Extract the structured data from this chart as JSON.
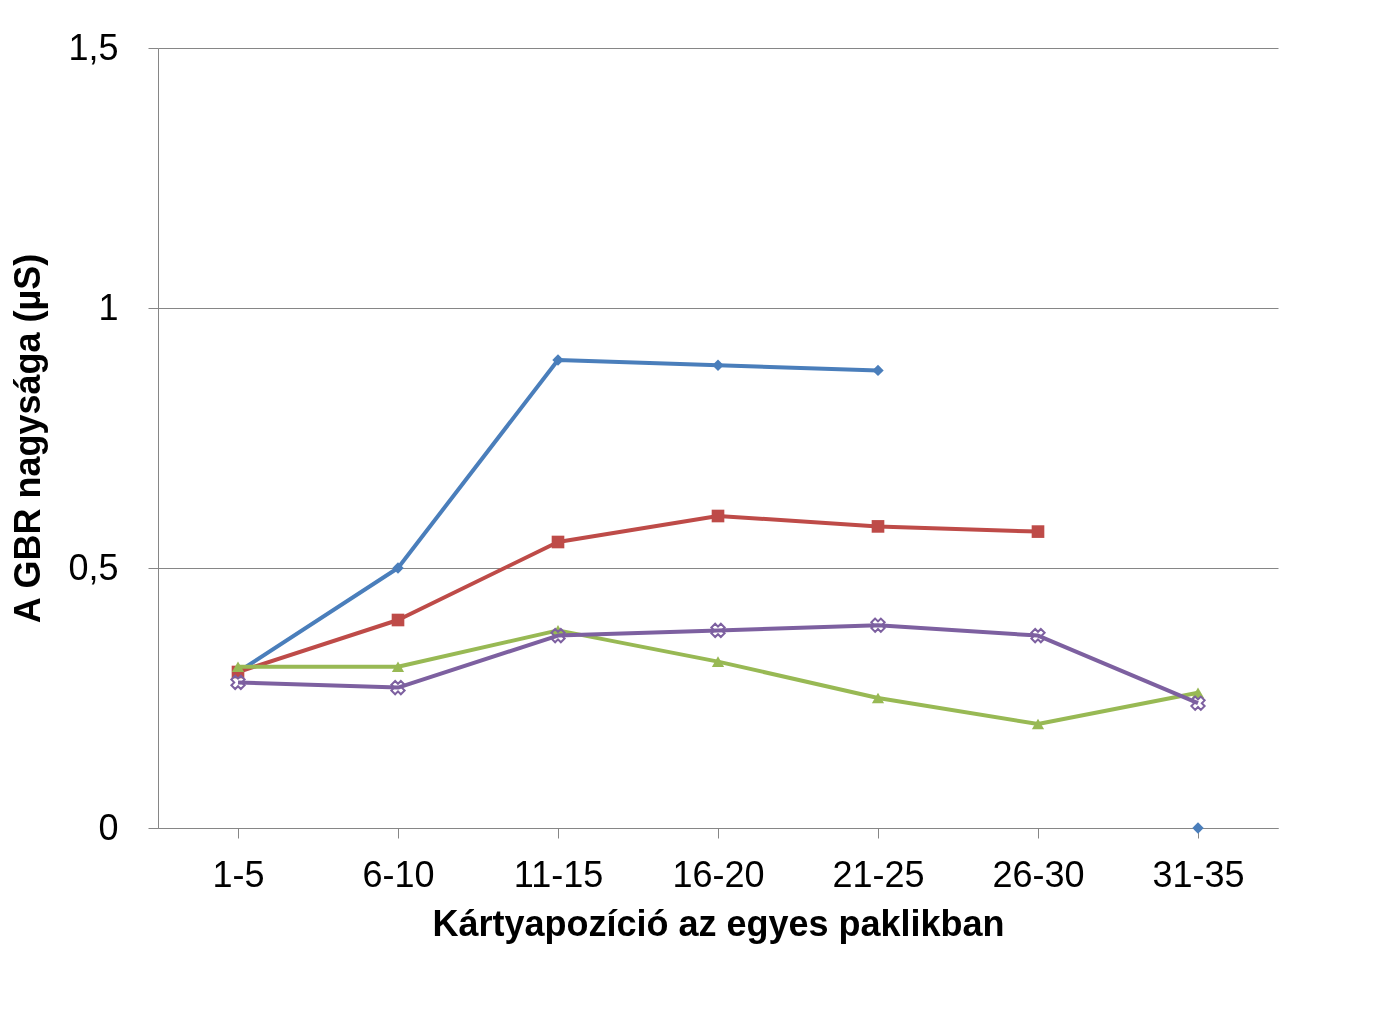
{
  "chart_data": {
    "type": "line",
    "xlabel": "Kártyapozíció az egyes paklikban",
    "ylabel": "A GBR nagysága (µS)",
    "categories": [
      "1-5",
      "6-10",
      "11-15",
      "16-20",
      "21-25",
      "26-30",
      "31-35"
    ],
    "ylim": [
      0,
      1.5
    ],
    "yticks": [
      0,
      {
        "value": 0.5,
        "label": "0,5"
      },
      1,
      {
        "value": 1.5,
        "label": "1,5"
      }
    ],
    "grid": "y",
    "series": [
      {
        "color": "#4a7ebb",
        "marker": "diamond",
        "values": [
          0.3,
          0.5,
          0.9,
          0.89,
          0.88,
          null,
          0
        ]
      },
      {
        "color": "#be4b48",
        "marker": "square",
        "values": [
          0.3,
          0.4,
          0.55,
          0.6,
          0.58,
          0.57,
          null
        ]
      },
      {
        "color": "#98b954",
        "marker": "triangle",
        "values": [
          0.31,
          0.31,
          0.38,
          0.32,
          0.25,
          0.2,
          0.26
        ]
      },
      {
        "color": "#7d60a0",
        "marker": "cross",
        "values": [
          0.28,
          0.27,
          0.37,
          0.38,
          0.39,
          0.37,
          0.24
        ]
      }
    ]
  }
}
